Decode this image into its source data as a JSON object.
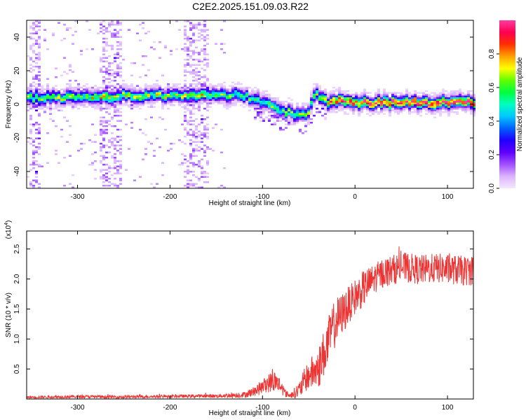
{
  "title": "C2E2.2025.151.09.03.R22",
  "chart_data": [
    {
      "type": "heatmap",
      "xlabel": "Height of straight line (km)",
      "ylabel": "Frequency (Hz)",
      "xlim": [
        -355,
        128
      ],
      "ylim": [
        -50,
        50
      ],
      "x_ticks": [
        -300,
        -200,
        -100,
        0,
        100
      ],
      "y_ticks": [
        40,
        20,
        0,
        -20,
        -40
      ],
      "colorbar": {
        "label": "Normalized spectral amplitude",
        "range": [
          0.0,
          1.0
        ],
        "ticks": [
          "0.0",
          "0.2",
          "0.4",
          "0.6",
          "0.8"
        ],
        "colormap": [
          "#f4e8ff",
          "#dcb4ff",
          "#a050ff",
          "#6000ff",
          "#1e00ff",
          "#0060ff",
          "#00c8ff",
          "#00ffc0",
          "#00ff40",
          "#60ff00",
          "#ffff00",
          "#ffa000",
          "#ff3000",
          "#ff0050",
          "#ff3ca0"
        ]
      },
      "ridge": {
        "x": [
          -355,
          -300,
          -250,
          -200,
          -150,
          -120,
          -100,
          -80,
          -60,
          -50,
          -45,
          -40,
          -30,
          -20,
          0,
          50,
          100,
          128
        ],
        "frequency": [
          4,
          4,
          5,
          5,
          6,
          5,
          1,
          -3,
          -7,
          -4,
          4,
          6,
          1,
          2,
          1,
          1,
          1,
          1
        ],
        "peak_amplitude": [
          0.55,
          0.6,
          0.6,
          0.6,
          0.55,
          0.5,
          0.45,
          0.5,
          0.55,
          0.5,
          0.55,
          0.55,
          0.7,
          0.9,
          0.9,
          0.95,
          0.95,
          0.9
        ]
      }
    },
    {
      "type": "line",
      "xlabel": "Height of straight line (km)",
      "ylabel": "SNR (10 * v/v)",
      "y_multiplier": "(x10",
      "y_multiplier_exp": "4",
      "xlim": [
        -355,
        128
      ],
      "ylim": [
        0,
        28000
      ],
      "x_ticks": [
        -300,
        -200,
        -100,
        0,
        100
      ],
      "y_ticks": [
        5000,
        10000,
        15000,
        20000,
        25000
      ],
      "y_tick_labels": [
        "0.5",
        "1.0",
        "1.5",
        "2.0",
        "2.5"
      ],
      "color": "#ee3333",
      "series": [
        {
          "x": [
            -355,
            -300,
            -250,
            -200,
            -150,
            -120,
            -110,
            -100,
            -95,
            -90,
            -85,
            -80,
            -75,
            -70,
            -60,
            -55,
            -50,
            -45,
            -40,
            -35,
            -30,
            -25,
            -20,
            -15,
            -10,
            -5,
            0,
            10,
            20,
            30,
            40,
            50,
            60,
            70,
            80,
            90,
            100,
            110,
            120,
            128
          ],
          "values": [
            300,
            400,
            350,
            450,
            500,
            700,
            1200,
            2000,
            2600,
            2800,
            3000,
            2000,
            900,
            600,
            1500,
            3000,
            4000,
            4500,
            5000,
            7000,
            9000,
            11500,
            13000,
            14000,
            15000,
            16000,
            17000,
            18500,
            20000,
            21000,
            21500,
            22000,
            21800,
            21500,
            21700,
            21800,
            21600,
            21500,
            21300,
            21500
          ],
          "noise": [
            200,
            250,
            250,
            250,
            300,
            500,
            800,
            1200,
            1500,
            1800,
            1800,
            1200,
            600,
            400,
            1500,
            2000,
            2500,
            3000,
            3500,
            4000,
            4000,
            4000,
            4000,
            3500,
            3500,
            3000,
            3000,
            3000,
            2500,
            2500,
            2500,
            2500,
            2500,
            2500,
            2500,
            2500,
            2500,
            2500,
            2500,
            2500
          ]
        }
      ]
    }
  ]
}
